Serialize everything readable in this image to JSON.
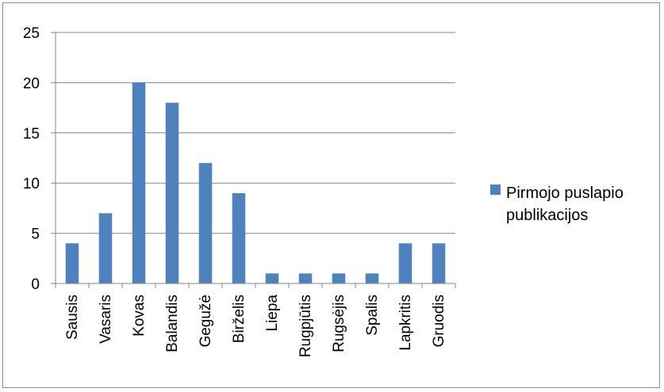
{
  "chart_data": {
    "type": "bar",
    "categories": [
      "Sausis",
      "Vasaris",
      "Kovas",
      "Balandis",
      "Gegužė",
      "Birželis",
      "Liepa",
      "Rugpjūtis",
      "Rugsėjis",
      "Spalis",
      "Lapkritis",
      "Gruodis"
    ],
    "series": [
      {
        "name": "Pirmojo puslapio publikacijos",
        "values": [
          4,
          7,
          20,
          18,
          12,
          9,
          1,
          1,
          1,
          1,
          4,
          4
        ],
        "color": "#4F81BD"
      }
    ],
    "title": "",
    "xlabel": "",
    "ylabel": "",
    "ylim": [
      0,
      25
    ],
    "yticks": [
      0,
      5,
      10,
      15,
      20,
      25
    ],
    "grid": true,
    "legend_position": "right",
    "legend_lines": [
      "Pirmojo puslapio",
      "publikacijos"
    ]
  },
  "colors": {
    "bar": "#4F81BD",
    "grid": "#868686",
    "axis": "#868686",
    "border": "#8c8c8c"
  }
}
